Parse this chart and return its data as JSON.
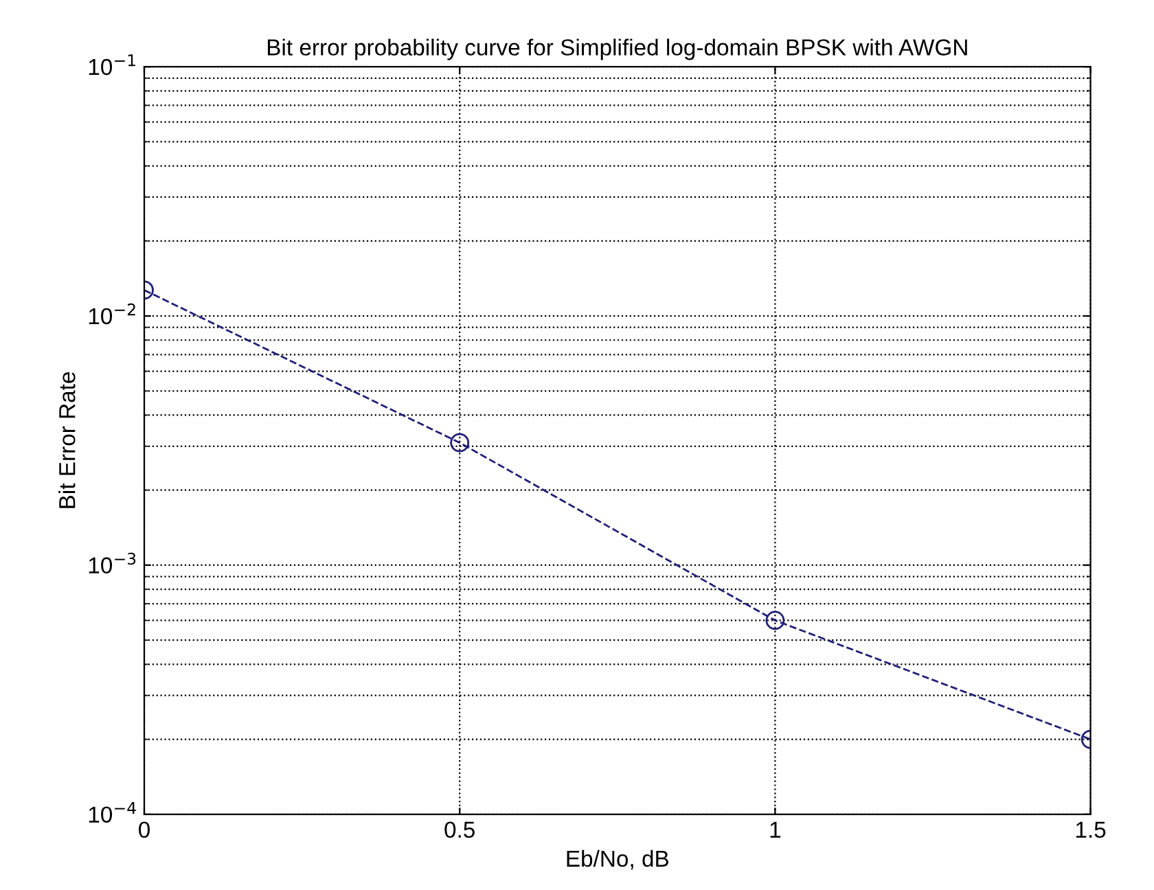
{
  "chart_data": {
    "type": "line",
    "title": "Bit error probability curve for Simplified log-domain BPSK with AWGN",
    "xlabel": "Eb/No, dB",
    "ylabel": "Bit Error Rate",
    "x": [
      0,
      0.5,
      1,
      1.5
    ],
    "series": [
      {
        "color": "#1f1f7a",
        "values": [
          0.0127,
          0.0031,
          0.0006,
          0.0002
        ]
      }
    ],
    "log": "y",
    "xlim": [
      0,
      1.5
    ],
    "ylim": [
      0.0001,
      0.1
    ],
    "xticks": [
      0,
      0.5,
      1,
      1.5
    ],
    "yticks": [
      {
        "value": 0.0001,
        "label": "10$^{−4}$"
      },
      {
        "value": 0.001,
        "label": "10$^{−3}$"
      },
      {
        "value": 0.01,
        "label": "10$^{−2}$"
      },
      {
        "value": 0.1,
        "label": "10$^{−1}$"
      }
    ],
    "grid": true,
    "marker": "circle",
    "line_style": "dashed",
    "legend": false
  }
}
